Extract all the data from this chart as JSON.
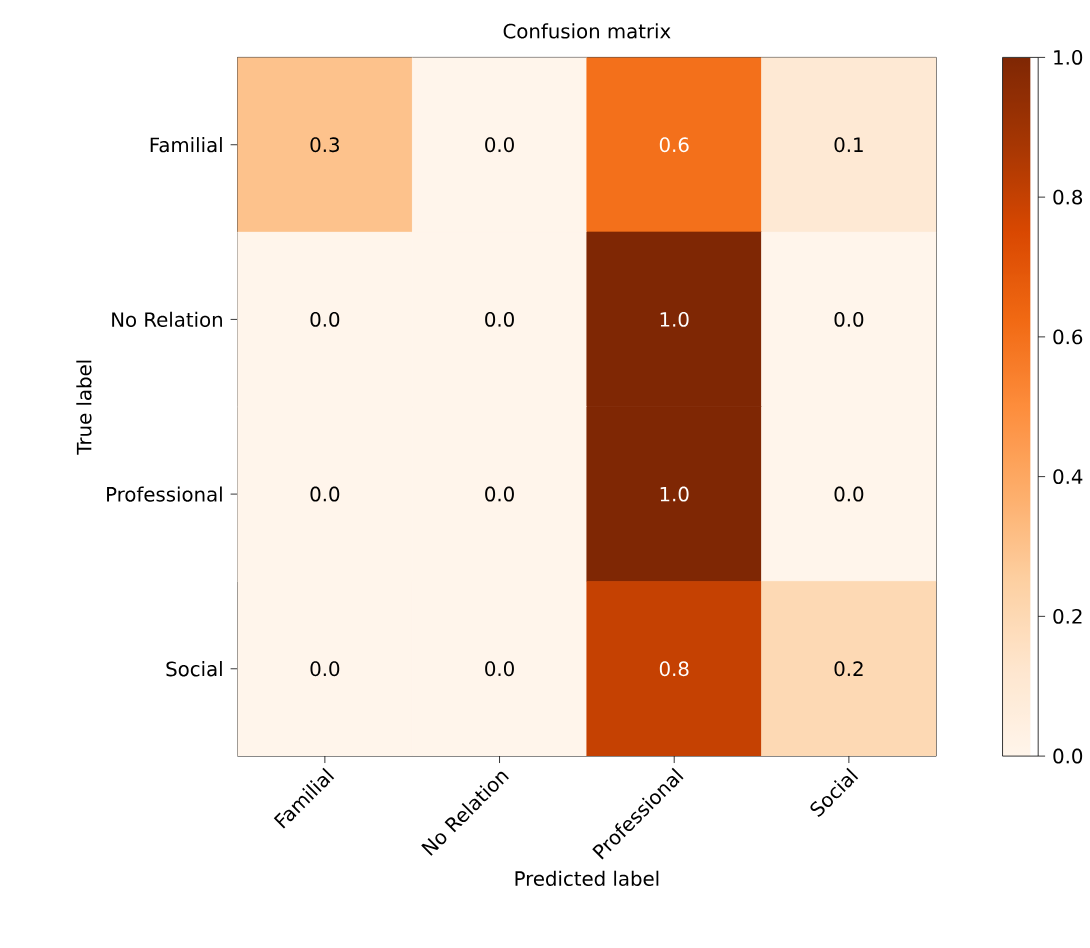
{
  "chart_data": {
    "type": "heatmap",
    "title": "Confusion matrix",
    "xlabel": "Predicted label",
    "ylabel": "True label",
    "categories": [
      "Familial",
      "No Relation",
      "Professional",
      "Social"
    ],
    "y_categories": [
      "Familial",
      "No Relation",
      "Professional",
      "Social"
    ],
    "cells": [
      [
        0.3,
        0.0,
        0.6,
        0.1
      ],
      [
        0.0,
        0.0,
        1.0,
        0.0
      ],
      [
        0.0,
        0.0,
        1.0,
        0.0
      ],
      [
        0.0,
        0.0,
        0.8,
        0.2
      ]
    ],
    "cell_labels": [
      [
        "0.3",
        "0.0",
        "0.6",
        "0.1"
      ],
      [
        "0.0",
        "0.0",
        "1.0",
        "0.0"
      ],
      [
        "0.0",
        "0.0",
        "1.0",
        "0.0"
      ],
      [
        "0.0",
        "0.0",
        "0.8",
        "0.2"
      ]
    ],
    "clim": [
      0,
      1
    ],
    "cticks": [
      {
        "value": 0,
        "label": "0.0"
      },
      {
        "value": 0.2,
        "label": "0.2"
      },
      {
        "value": 0.4,
        "label": "0.4"
      },
      {
        "value": 0.6,
        "label": "0.6"
      },
      {
        "value": 0.8,
        "label": "0.8"
      },
      {
        "value": 1,
        "label": "1.0"
      }
    ]
  }
}
